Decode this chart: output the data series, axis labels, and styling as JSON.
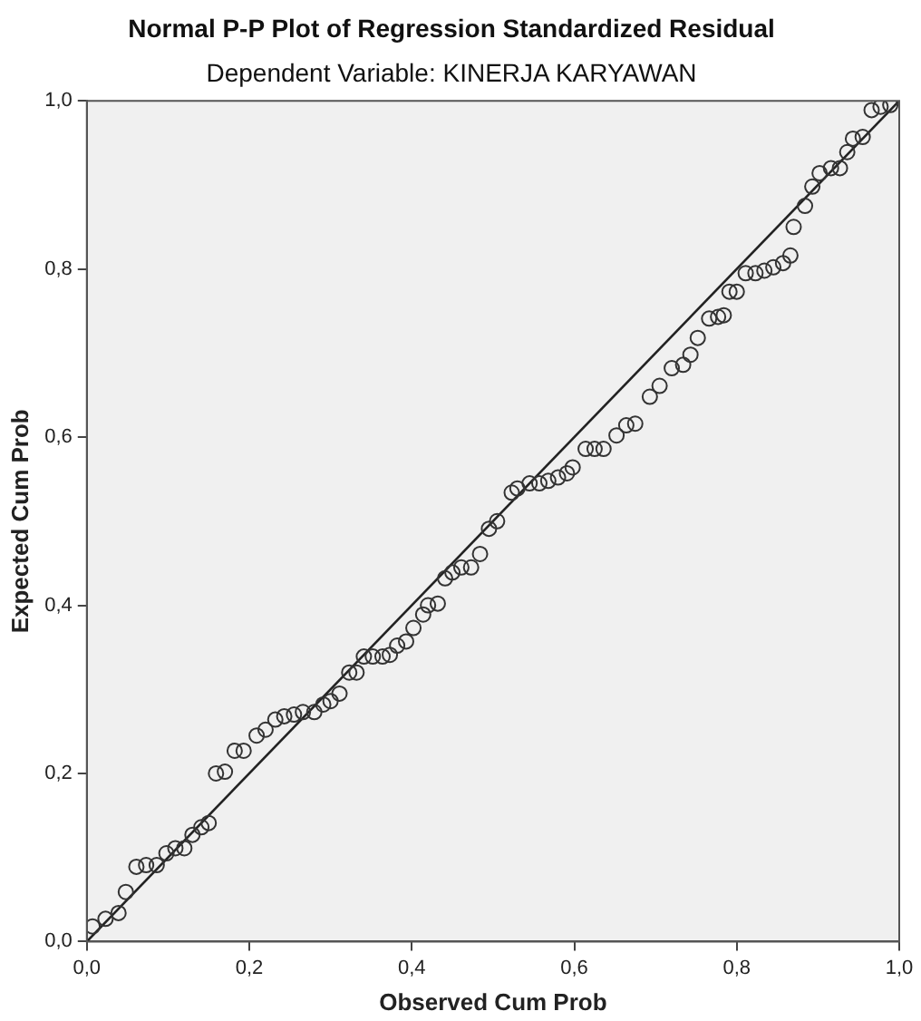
{
  "chart_data": {
    "type": "scatter",
    "title": "Normal P-P Plot of Regression Standardized Residual",
    "subtitle": "Dependent Variable: KINERJA KARYAWAN",
    "xlabel": "Observed Cum Prob",
    "ylabel": "Expected Cum Prob",
    "xlim": [
      0,
      1
    ],
    "ylim": [
      0,
      1
    ],
    "xticks": [
      {
        "value": 0,
        "label": "0,0"
      },
      {
        "value": 0.2,
        "label": "0,2"
      },
      {
        "value": 0.4,
        "label": "0,4"
      },
      {
        "value": 0.6,
        "label": "0,6"
      },
      {
        "value": 0.8,
        "label": "0,8"
      },
      {
        "value": 1,
        "label": "1,0"
      }
    ],
    "yticks": [
      {
        "value": 0,
        "label": "0,0"
      },
      {
        "value": 0.2,
        "label": "0,2"
      },
      {
        "value": 0.4,
        "label": "0,4"
      },
      {
        "value": 0.6,
        "label": "0,6"
      },
      {
        "value": 0.8,
        "label": "0,8"
      },
      {
        "value": 1,
        "label": "1,0"
      }
    ],
    "grid": false,
    "legend": false,
    "series": [
      {
        "type": "scatter",
        "color": "#333333",
        "marker": "circle",
        "x": [
          0.007,
          0.023,
          0.039,
          0.048,
          0.061,
          0.073,
          0.086,
          0.098,
          0.109,
          0.12,
          0.13,
          0.141,
          0.15,
          0.159,
          0.17,
          0.182,
          0.193,
          0.209,
          0.22,
          0.232,
          0.243,
          0.255,
          0.266,
          0.28,
          0.291,
          0.3,
          0.311,
          0.323,
          0.332,
          0.341,
          0.352,
          0.364,
          0.373,
          0.382,
          0.393,
          0.402,
          0.414,
          0.42,
          0.432,
          0.441,
          0.45,
          0.461,
          0.473,
          0.484,
          0.495,
          0.505,
          0.523,
          0.53,
          0.545,
          0.557,
          0.568,
          0.58,
          0.591,
          0.598,
          0.614,
          0.625,
          0.636,
          0.652,
          0.664,
          0.675,
          0.693,
          0.705,
          0.72,
          0.734,
          0.743,
          0.752,
          0.766,
          0.777,
          0.784,
          0.791,
          0.8,
          0.811,
          0.823,
          0.834,
          0.845,
          0.857,
          0.866,
          0.87,
          0.884,
          0.893,
          0.902,
          0.916,
          0.927,
          0.936,
          0.943,
          0.955,
          0.966,
          0.977,
          0.989
        ],
        "values": [
          0.018,
          0.027,
          0.034,
          0.059,
          0.089,
          0.091,
          0.091,
          0.105,
          0.111,
          0.111,
          0.127,
          0.136,
          0.141,
          0.2,
          0.202,
          0.227,
          0.227,
          0.245,
          0.252,
          0.264,
          0.268,
          0.27,
          0.273,
          0.273,
          0.282,
          0.286,
          0.295,
          0.32,
          0.32,
          0.339,
          0.339,
          0.339,
          0.341,
          0.352,
          0.357,
          0.373,
          0.389,
          0.4,
          0.402,
          0.432,
          0.439,
          0.445,
          0.445,
          0.461,
          0.491,
          0.5,
          0.534,
          0.539,
          0.545,
          0.545,
          0.548,
          0.552,
          0.557,
          0.564,
          0.586,
          0.586,
          0.586,
          0.602,
          0.614,
          0.616,
          0.648,
          0.661,
          0.682,
          0.686,
          0.698,
          0.718,
          0.741,
          0.743,
          0.745,
          0.773,
          0.773,
          0.795,
          0.795,
          0.798,
          0.802,
          0.807,
          0.816,
          0.85,
          0.875,
          0.898,
          0.914,
          0.92,
          0.92,
          0.939,
          0.955,
          0.957,
          0.989,
          0.993,
          0.995
        ]
      },
      {
        "type": "line",
        "color": "#222222",
        "marker": "none",
        "line_style": "solid",
        "x": [
          0,
          1
        ],
        "values": [
          0,
          1
        ]
      }
    ]
  }
}
